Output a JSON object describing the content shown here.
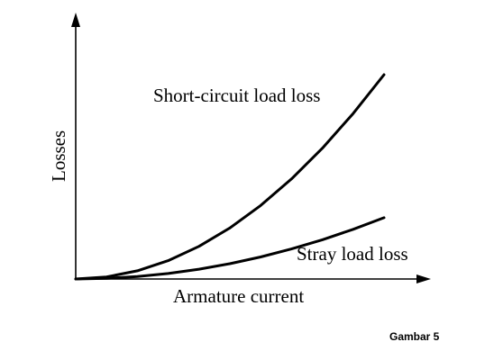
{
  "chart_data": {
    "type": "line",
    "title": "",
    "xlabel": "Armature current",
    "ylabel": "Losses",
    "xlim": [
      0,
      1
    ],
    "ylim": [
      0,
      1
    ],
    "grid": false,
    "legend": "none",
    "x": [
      0,
      0.1,
      0.2,
      0.3,
      0.4,
      0.5,
      0.6,
      0.7,
      0.8,
      0.9,
      1.0
    ],
    "series": [
      {
        "name": "Short-circuit load loss",
        "values": [
          0,
          0.01,
          0.04,
          0.09,
          0.16,
          0.25,
          0.36,
          0.49,
          0.64,
          0.81,
          1.0
        ],
        "color": "#000000"
      },
      {
        "name": "Stray load loss",
        "values": [
          0,
          0.003,
          0.012,
          0.027,
          0.048,
          0.075,
          0.108,
          0.147,
          0.192,
          0.243,
          0.3
        ],
        "color": "#000000"
      }
    ]
  },
  "caption": "Gambar 5"
}
